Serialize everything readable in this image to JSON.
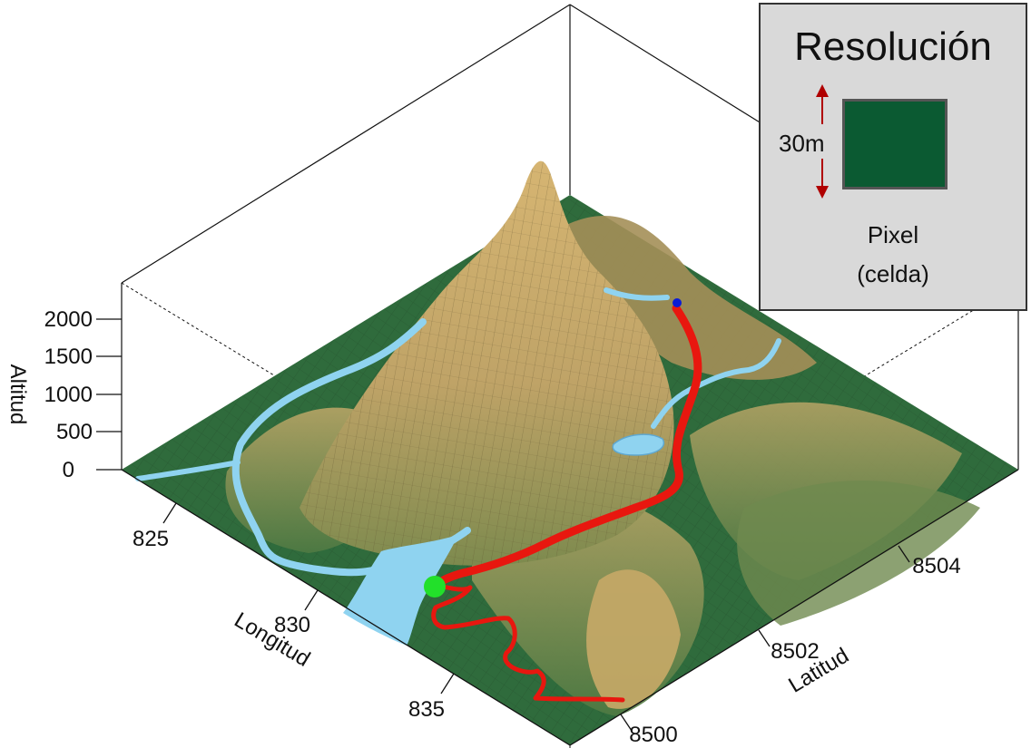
{
  "chart_data": {
    "type": "surface3d",
    "x_axis": {
      "label": "Longitud",
      "ticks": [
        "825",
        "830",
        "835"
      ]
    },
    "y_axis": {
      "label": "Latitud",
      "ticks": [
        "8500",
        "8502",
        "8504"
      ]
    },
    "z_axis": {
      "label": "Altitud",
      "ticks": [
        "0",
        "500",
        "1000",
        "1500",
        "2000"
      ],
      "range": [
        0,
        2000
      ]
    },
    "colors": {
      "lowland": "#2f6b3c",
      "highland": "#c9ab6b",
      "river": "#8fd3f0",
      "route": "#e8170f",
      "start_point": "#22e02a",
      "end_point": "#0a1bd6"
    }
  },
  "legend": {
    "title": "Resolución",
    "resolution": "30m",
    "pixel_label": "Pixel",
    "pixel_sublabel": "(celda)",
    "swatch_color": "#0b5a32",
    "arrow_color": "#b00000"
  }
}
